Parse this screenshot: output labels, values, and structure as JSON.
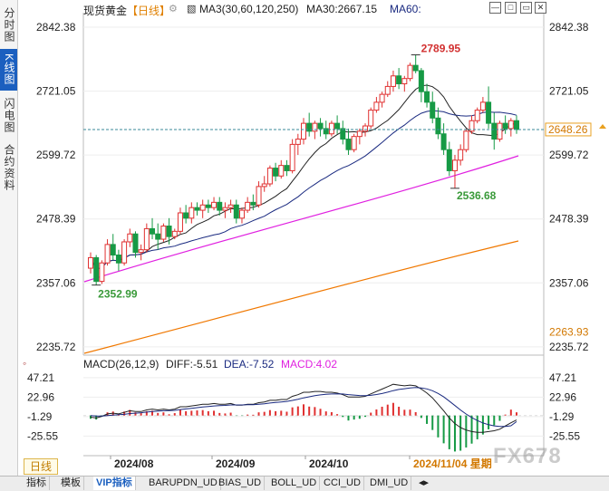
{
  "sidebar": [
    {
      "label": "分时图",
      "active": false
    },
    {
      "label": "K线图",
      "active": true
    },
    {
      "label": "闪电图",
      "active": false
    },
    {
      "label": "合约资料",
      "active": false
    }
  ],
  "header": {
    "instrument": "现货黄金",
    "period": "【日线】",
    "indicator": "MA3(30,60,120,250)",
    "ma30": "MA30:2667.15",
    "ma60": "MA60:"
  },
  "price_axis": {
    "ticks": [
      "2842.38",
      "2721.05",
      "2599.72",
      "2478.39",
      "2357.06",
      "2235.72"
    ],
    "current_price": "2648.26",
    "ma250_label": "2263.93"
  },
  "annotations": {
    "high": "2789.95",
    "low1": "2352.99",
    "low2": "2536.68"
  },
  "macd": {
    "title": "MACD(26,12,9)",
    "diff": "DIFF:-5.51",
    "dea": "DEA:-7.52",
    "macd": "MACD:4.02",
    "ticks": [
      "47.21",
      "22.96",
      "-1.29",
      "-25.55"
    ]
  },
  "time_axis": {
    "labels": [
      "2024/08",
      "2024/09",
      "2024/10",
      "2024/11/04 星期"
    ]
  },
  "range_button": "日线",
  "tabs": [
    "指标",
    "模板",
    "VIP指标",
    "BARUPDN_UD",
    "BIAS_UD",
    "BOLL_UD",
    "CCI_UD",
    "DMI_UD"
  ],
  "watermark": "FX678",
  "colors": {
    "up": "#e03030",
    "down": "#169a45",
    "ma30": "#222222",
    "ma60": "#1a2a80",
    "ma120": "#e020e0",
    "ma250": "#f07800",
    "high_label": "#d23030",
    "low_label": "#3a9a3a",
    "accent": "#1b5fbf"
  },
  "chart_data": {
    "type": "candlestick",
    "y_range": [
      2220,
      2870
    ],
    "candles": [
      [
        2385,
        2415,
        2375,
        2405
      ],
      [
        2405,
        2410,
        2352.99,
        2360
      ],
      [
        2360,
        2400,
        2355,
        2395
      ],
      [
        2395,
        2440,
        2390,
        2430
      ],
      [
        2430,
        2450,
        2400,
        2410
      ],
      [
        2410,
        2420,
        2380,
        2395
      ],
      [
        2395,
        2440,
        2390,
        2435
      ],
      [
        2435,
        2460,
        2425,
        2450
      ],
      [
        2450,
        2455,
        2405,
        2415
      ],
      [
        2415,
        2430,
        2400,
        2420
      ],
      [
        2420,
        2470,
        2415,
        2460
      ],
      [
        2460,
        2480,
        2440,
        2450
      ],
      [
        2450,
        2470,
        2420,
        2440
      ],
      [
        2440,
        2470,
        2435,
        2465
      ],
      [
        2465,
        2480,
        2430,
        2445
      ],
      [
        2445,
        2460,
        2440,
        2455
      ],
      [
        2455,
        2500,
        2450,
        2490
      ],
      [
        2490,
        2505,
        2470,
        2480
      ],
      [
        2480,
        2510,
        2470,
        2500
      ],
      [
        2500,
        2510,
        2485,
        2495
      ],
      [
        2495,
        2515,
        2480,
        2505
      ],
      [
        2505,
        2515,
        2490,
        2500
      ],
      [
        2500,
        2520,
        2495,
        2510
      ],
      [
        2510,
        2520,
        2485,
        2495
      ],
      [
        2495,
        2510,
        2480,
        2500
      ],
      [
        2500,
        2515,
        2490,
        2505
      ],
      [
        2505,
        2515,
        2470,
        2480
      ],
      [
        2480,
        2500,
        2470,
        2495
      ],
      [
        2495,
        2520,
        2490,
        2510
      ],
      [
        2510,
        2525,
        2495,
        2505
      ],
      [
        2505,
        2550,
        2500,
        2540
      ],
      [
        2540,
        2560,
        2530,
        2545
      ],
      [
        2545,
        2580,
        2540,
        2575
      ],
      [
        2575,
        2585,
        2550,
        2560
      ],
      [
        2560,
        2590,
        2555,
        2580
      ],
      [
        2580,
        2590,
        2560,
        2570
      ],
      [
        2570,
        2630,
        2565,
        2620
      ],
      [
        2620,
        2640,
        2600,
        2630
      ],
      [
        2630,
        2670,
        2620,
        2660
      ],
      [
        2660,
        2680,
        2635,
        2645
      ],
      [
        2645,
        2665,
        2630,
        2660
      ],
      [
        2660,
        2670,
        2635,
        2650
      ],
      [
        2650,
        2665,
        2630,
        2640
      ],
      [
        2640,
        2665,
        2635,
        2660
      ],
      [
        2660,
        2675,
        2640,
        2650
      ],
      [
        2650,
        2665,
        2620,
        2630
      ],
      [
        2630,
        2650,
        2600,
        2610
      ],
      [
        2610,
        2640,
        2605,
        2635
      ],
      [
        2635,
        2650,
        2620,
        2645
      ],
      [
        2645,
        2660,
        2635,
        2655
      ],
      [
        2655,
        2690,
        2650,
        2685
      ],
      [
        2685,
        2710,
        2680,
        2700
      ],
      [
        2700,
        2720,
        2690,
        2715
      ],
      [
        2715,
        2740,
        2710,
        2730
      ],
      [
        2730,
        2760,
        2720,
        2750
      ],
      [
        2750,
        2765,
        2725,
        2735
      ],
      [
        2735,
        2750,
        2720,
        2745
      ],
      [
        2745,
        2775,
        2740,
        2770
      ],
      [
        2770,
        2789.95,
        2755,
        2760
      ],
      [
        2760,
        2765,
        2700,
        2720
      ],
      [
        2720,
        2735,
        2690,
        2700
      ],
      [
        2700,
        2720,
        2660,
        2670
      ],
      [
        2670,
        2690,
        2630,
        2640
      ],
      [
        2640,
        2660,
        2600,
        2610
      ],
      [
        2610,
        2625,
        2560,
        2570
      ],
      [
        2570,
        2600,
        2536.68,
        2590
      ],
      [
        2590,
        2620,
        2580,
        2610
      ],
      [
        2610,
        2650,
        2605,
        2645
      ],
      [
        2645,
        2675,
        2640,
        2665
      ],
      [
        2665,
        2690,
        2660,
        2685
      ],
      [
        2685,
        2710,
        2680,
        2700
      ],
      [
        2700,
        2730,
        2650,
        2660
      ],
      [
        2660,
        2680,
        2610,
        2630
      ],
      [
        2630,
        2665,
        2625,
        2660
      ],
      [
        2660,
        2675,
        2640,
        2650
      ],
      [
        2650,
        2670,
        2635,
        2665
      ],
      [
        2665,
        2675,
        2640,
        2648.26
      ]
    ],
    "macd_range": [
      -50,
      55
    ],
    "diff": [
      -2,
      -3,
      -1,
      2,
      3,
      2,
      4,
      6,
      5,
      5,
      7,
      8,
      7,
      8,
      7,
      8,
      11,
      11,
      12,
      13,
      14,
      14,
      15,
      14,
      14,
      15,
      13,
      13,
      14,
      14,
      16,
      17,
      19,
      19,
      20,
      20,
      24,
      26,
      29,
      29,
      30,
      30,
      29,
      29,
      28,
      26,
      23,
      23,
      23,
      24,
      27,
      30,
      33,
      36,
      39,
      38,
      37,
      38,
      37,
      33,
      28,
      22,
      14,
      6,
      -3,
      -10,
      -15,
      -18,
      -20,
      -21,
      -21,
      -20,
      -19,
      -17,
      -13,
      -9,
      -5.51
    ],
    "dea": [
      0,
      -0.5,
      -0.6,
      0,
      0.5,
      1,
      1.5,
      2.5,
      3,
      3.5,
      4.3,
      5,
      5.4,
      6,
      6.2,
      6.5,
      7.5,
      8.3,
      9,
      9.8,
      10.6,
      11.3,
      12,
      12.4,
      12.7,
      13.2,
      13.2,
      13.2,
      13.4,
      13.5,
      14,
      14.7,
      15.6,
      16.3,
      17,
      17.6,
      18.9,
      20.3,
      22,
      23.4,
      24.7,
      25.8,
      26.4,
      26.9,
      27.1,
      26.9,
      26.1,
      25.5,
      25,
      24.8,
      25.2,
      26.2,
      27.5,
      29.2,
      31.1,
      32.5,
      33.4,
      34.3,
      34.9,
      34.5,
      33.2,
      31,
      27.6,
      23.3,
      18,
      12.4,
      6.9,
      1.9,
      -2.5,
      -6.2,
      -9.2,
      -11.4,
      -12.9,
      -13.7,
      -13.6,
      -12.7,
      -7.52
    ]
  }
}
